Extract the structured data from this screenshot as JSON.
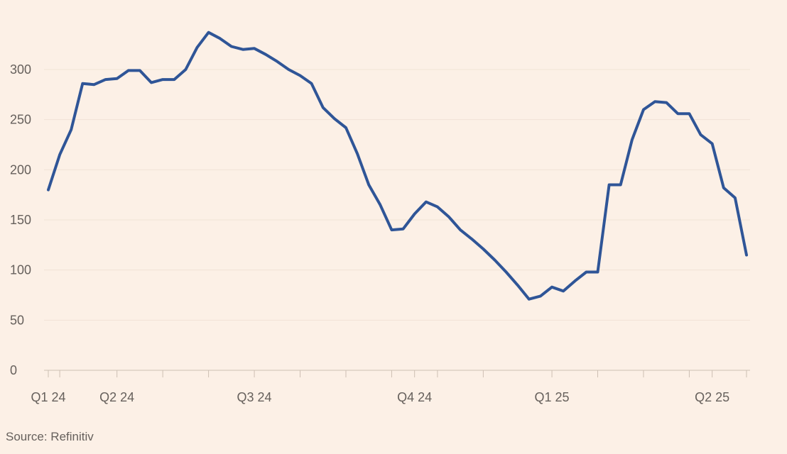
{
  "chart_data": {
    "type": "line",
    "title": "",
    "xlabel": "",
    "ylabel": "",
    "ylim": [
      0,
      340
    ],
    "yticks": [
      0,
      50,
      100,
      150,
      200,
      250,
      300
    ],
    "grid": "horizontal",
    "x_tick_labels": [
      {
        "label": "Q1 24",
        "x": 0
      },
      {
        "label": "Q2 24",
        "x": 6
      },
      {
        "label": "Q3 24",
        "x": 18
      },
      {
        "label": "Q4 24",
        "x": 32
      },
      {
        "label": "Q1 25",
        "x": 44
      },
      {
        "label": "Q2 25",
        "x": 58
      }
    ],
    "minor_x_ticks": [
      1,
      10,
      14,
      22,
      26,
      30,
      34,
      38,
      48,
      52,
      56,
      61
    ],
    "series": [
      {
        "color": "#2f5597",
        "x": [
          0,
          1,
          2,
          3,
          4,
          5,
          6,
          7,
          8,
          9,
          10,
          11,
          12,
          13,
          14,
          15,
          16,
          17,
          18,
          19,
          20,
          21,
          22,
          23,
          24,
          25,
          26,
          27,
          28,
          29,
          30,
          31,
          32,
          33,
          34,
          35,
          36,
          37,
          38,
          39,
          40,
          41,
          42,
          43,
          44,
          45,
          46,
          47,
          48,
          49,
          50,
          51,
          52,
          53,
          54,
          55,
          56,
          57,
          58,
          59,
          60,
          61
        ],
        "values": [
          180,
          215,
          240,
          286,
          285,
          290,
          291,
          299,
          299,
          287,
          290,
          290,
          300,
          322,
          337,
          331,
          323,
          320,
          321,
          315,
          308,
          300,
          294,
          286,
          262,
          251,
          242,
          216,
          185,
          165,
          140,
          141,
          156,
          168,
          163,
          153,
          140,
          131,
          121,
          110,
          98,
          85,
          71,
          74,
          83,
          79,
          89,
          98,
          98,
          185,
          185,
          230,
          260,
          268,
          267,
          256,
          256,
          235,
          226,
          182,
          172,
          115
        ]
      }
    ]
  },
  "source": "Source: Refinitiv",
  "colors": {
    "background": "#fcf0e6",
    "series": "#2f5597",
    "grid": "#f1e3d6",
    "axis": "#cdbfb3",
    "text": "#66605c"
  }
}
